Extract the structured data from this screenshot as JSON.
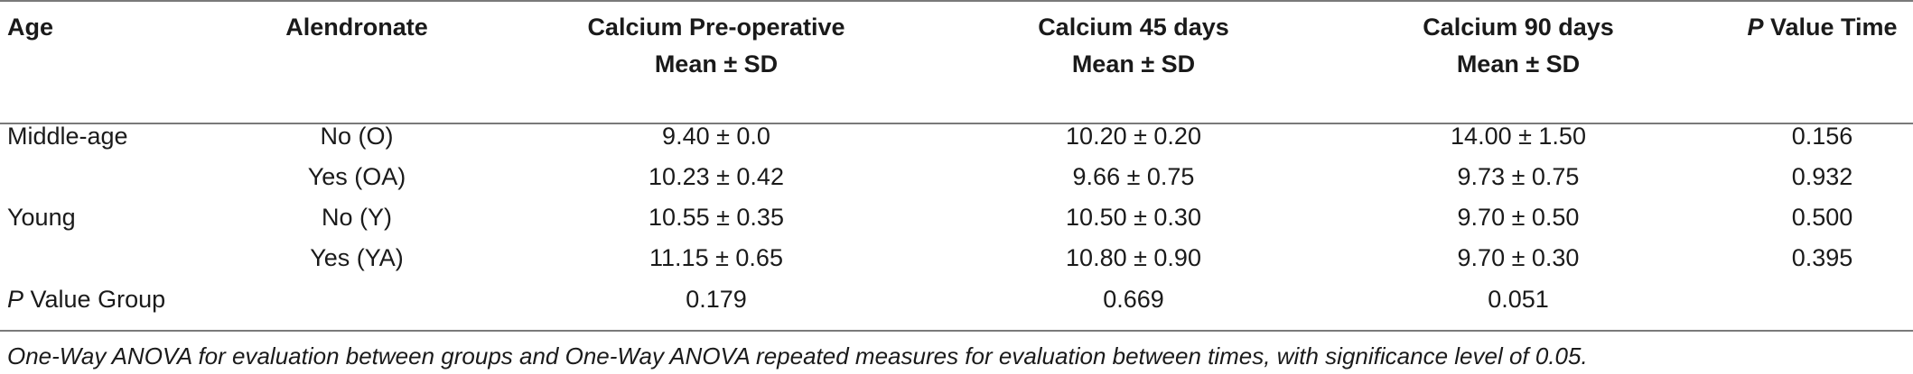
{
  "table": {
    "headers": {
      "age": "Age",
      "alendronate": "Alendronate",
      "calcium_pre_line1": "Calcium Pre-operative",
      "calcium_pre_line2": "Mean ± SD",
      "calcium_45_line1": "Calcium 45 days",
      "calcium_45_line2": "Mean ± SD",
      "calcium_90_line1": "Calcium 90 days",
      "calcium_90_line2": "Mean ± SD",
      "p_value_time_p": "P",
      "p_value_time_rest": " Value Time"
    },
    "rows": [
      {
        "age": "Middle-age",
        "alendronate": "No (O)",
        "pre": "9.40 ± 0.0",
        "d45": "10.20 ± 0.20",
        "d90": "14.00 ± 1.50",
        "p_time": "0.156"
      },
      {
        "age": "",
        "alendronate": "Yes (OA)",
        "pre": "10.23 ± 0.42",
        "d45": "9.66 ± 0.75",
        "d90": "9.73 ± 0.75",
        "p_time": "0.932"
      },
      {
        "age": "Young",
        "alendronate": "No (Y)",
        "pre": "10.55 ± 0.35",
        "d45": "10.50 ± 0.30",
        "d90": "9.70 ± 0.50",
        "p_time": "0.500"
      },
      {
        "age": "",
        "alendronate": "Yes (YA)",
        "pre": "11.15 ± 0.65",
        "d45": "10.80 ± 0.90",
        "d90": "9.70 ± 0.30",
        "p_time": "0.395"
      }
    ],
    "p_group": {
      "label_p": "P",
      "label_rest": " Value Group",
      "pre": "0.179",
      "d45": "0.669",
      "d90": "0.051"
    }
  },
  "footnote": "One-Way ANOVA for evaluation between groups and One-Way ANOVA repeated measures for evaluation between times, with significance level of 0.05."
}
